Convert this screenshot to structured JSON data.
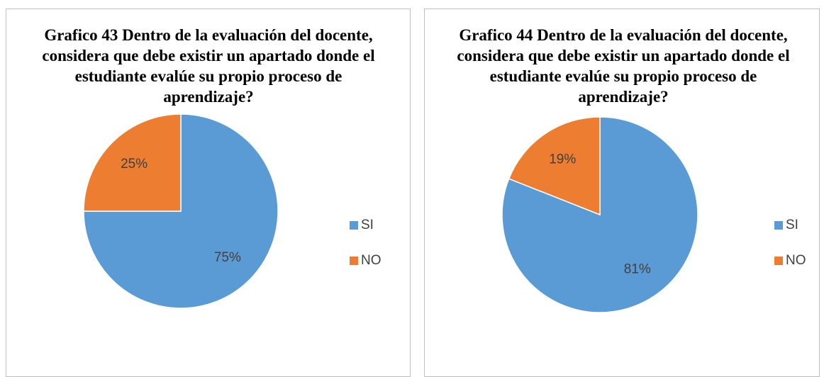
{
  "chart_data": [
    {
      "type": "pie",
      "title": "Grafico 43 Dentro de la evaluación del docente, considera que debe existir un apartado donde el estudiante evalúe su propio proceso de aprendizaje?",
      "categories": [
        "SI",
        "NO"
      ],
      "values": [
        75,
        25
      ],
      "value_labels": [
        "75%",
        "25%"
      ],
      "colors": [
        "#5b9bd5",
        "#ed7d31"
      ],
      "legend": "right"
    },
    {
      "type": "pie",
      "title": "Grafico 44 Dentro de la evaluación del docente, considera que debe existir un apartado donde el estudiante evalúe su propio proceso de aprendizaje?",
      "categories": [
        "SI",
        "NO"
      ],
      "values": [
        81,
        19
      ],
      "value_labels": [
        "81%",
        "19%"
      ],
      "colors": [
        "#5b9bd5",
        "#ed7d31"
      ],
      "legend": "right"
    }
  ]
}
